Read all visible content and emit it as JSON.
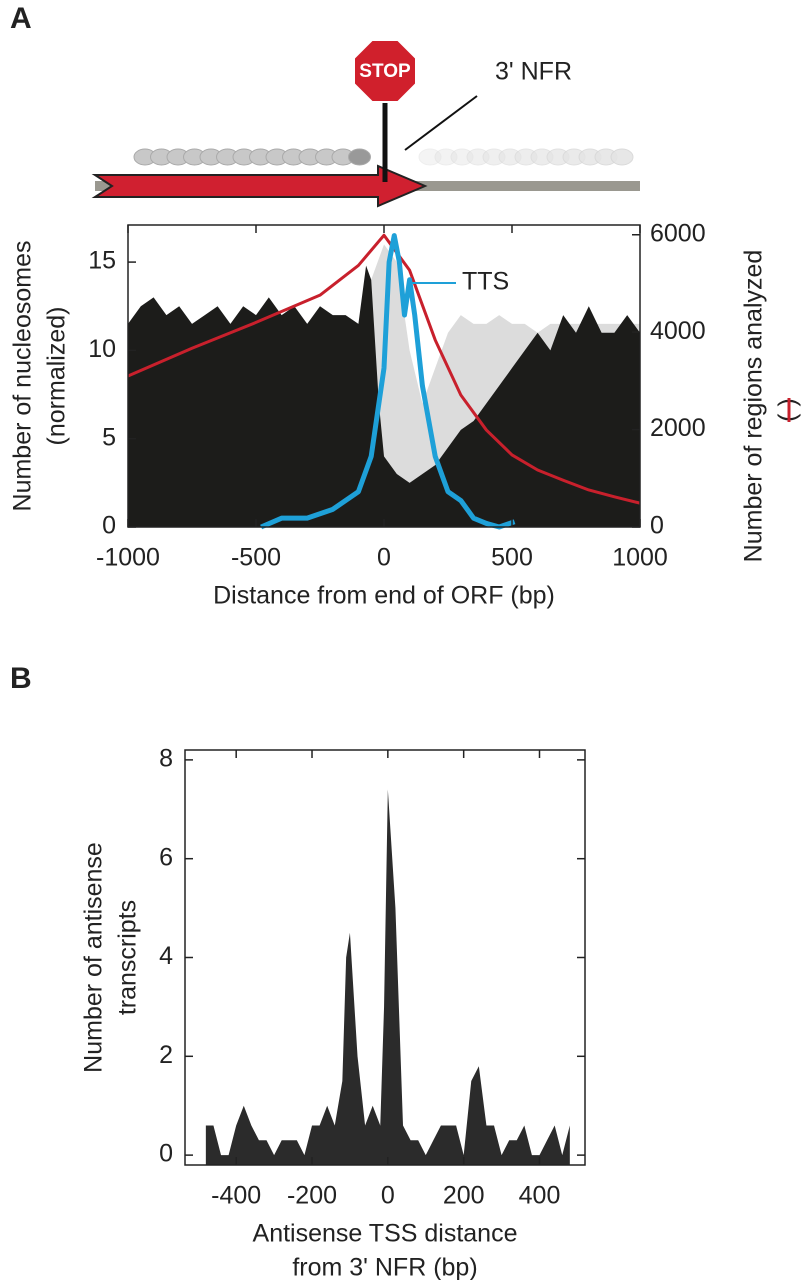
{
  "diagram": {
    "stop_label": "STOP",
    "nfr_label": "3' NFR"
  },
  "chart_data": [
    {
      "type": "area",
      "panel_label": "A",
      "xlabel": "Distance from end of ORF (bp)",
      "ylabel": [
        "Number of nucleosomes",
        "(normalized)"
      ],
      "y2label": [
        "Number of regions analyzed",
        "( )"
      ],
      "annotation": "TTS",
      "xlim": [
        -1000,
        1000
      ],
      "xticks": [
        -1000,
        -500,
        0,
        500,
        1000
      ],
      "ylim": [
        0,
        17.1
      ],
      "yticks": [
        0,
        5,
        10,
        15
      ],
      "y2lim": [
        0,
        6200
      ],
      "y2ticks": [
        0,
        2000,
        4000,
        6000
      ],
      "series": [
        {
          "type": "area",
          "color": "#dcdcdc",
          "x": [
            -1000,
            -900,
            -800,
            -700,
            -600,
            -500,
            -400,
            -300,
            -200,
            -100,
            -50,
            0,
            50,
            100,
            150,
            200,
            250,
            300,
            350,
            400,
            450,
            500,
            550,
            600,
            650,
            700,
            750,
            800,
            850,
            900,
            950,
            1000
          ],
          "values": [
            11,
            11,
            11,
            11,
            11,
            11,
            11,
            11,
            11,
            11,
            14,
            16,
            15,
            10,
            7,
            9,
            11,
            12,
            11.5,
            11.5,
            12,
            11.5,
            11.5,
            11,
            11.5,
            11.5,
            11.5,
            11.5,
            11.5,
            11.5,
            11.5,
            11.5
          ]
        },
        {
          "type": "area",
          "color": "#1c1c1a",
          "x": [
            -1000,
            -950,
            -900,
            -850,
            -800,
            -750,
            -700,
            -650,
            -600,
            -550,
            -500,
            -450,
            -400,
            -350,
            -300,
            -250,
            -200,
            -150,
            -100,
            -70,
            -50,
            -20,
            0,
            50,
            100,
            150,
            200,
            250,
            300,
            350,
            400,
            450,
            500,
            550,
            600,
            650,
            700,
            750,
            800,
            850,
            900,
            950,
            1000
          ],
          "values": [
            11.5,
            12.5,
            13,
            12,
            12.5,
            11.5,
            12,
            12.5,
            11.5,
            12.5,
            12,
            13,
            12,
            12.5,
            11.5,
            12.5,
            12,
            12,
            11.5,
            14.8,
            14,
            7,
            4,
            3,
            2.5,
            3,
            3.5,
            4.5,
            5.5,
            6,
            7,
            8,
            9,
            10,
            11,
            10,
            12,
            11,
            12.5,
            11,
            11,
            12,
            11
          ]
        },
        {
          "type": "line",
          "axis": "y2",
          "color": "#c8202c",
          "x": [
            -1000,
            -750,
            -500,
            -250,
            -100,
            0,
            100,
            200,
            300,
            400,
            500,
            600,
            700,
            800,
            900,
            1000
          ],
          "values": [
            3100,
            3670,
            4200,
            4760,
            5370,
            5990,
            5270,
            3840,
            2710,
            1990,
            1480,
            1170,
            960,
            760,
            620,
            490
          ]
        },
        {
          "type": "line",
          "color": "#1ea0d8",
          "width": 5,
          "x": [
            -480,
            -400,
            -300,
            -200,
            -100,
            -50,
            0,
            20,
            40,
            60,
            80,
            100,
            120,
            150,
            200,
            250,
            300,
            350,
            400,
            450,
            510
          ],
          "values": [
            0,
            0.5,
            0.5,
            1,
            2,
            4,
            9,
            15,
            16.5,
            15,
            12,
            14,
            12,
            8,
            4,
            2,
            1.5,
            0.5,
            0.2,
            0,
            0.3
          ]
        }
      ]
    },
    {
      "type": "area",
      "panel_label": "B",
      "xlabel": [
        "Antisense TSS distance",
        "from 3' NFR (bp)"
      ],
      "ylabel": [
        "Number of antisense",
        "transcripts"
      ],
      "xlim": [
        -535,
        520
      ],
      "xticks": [
        -400,
        -200,
        0,
        200,
        400
      ],
      "ylim": [
        -0.2,
        8.2
      ],
      "yticks": [
        0,
        2,
        4,
        6,
        8
      ],
      "series": [
        {
          "type": "area",
          "color": "#2b2b2b",
          "x": [
            -480,
            -460,
            -440,
            -420,
            -400,
            -380,
            -360,
            -340,
            -320,
            -300,
            -280,
            -260,
            -240,
            -220,
            -200,
            -180,
            -160,
            -140,
            -120,
            -110,
            -100,
            -80,
            -60,
            -40,
            -20,
            -10,
            0,
            20,
            40,
            60,
            80,
            100,
            120,
            140,
            160,
            180,
            200,
            220,
            240,
            260,
            280,
            300,
            320,
            340,
            360,
            380,
            400,
            420,
            440,
            460,
            480
          ],
          "values": [
            0.6,
            0.6,
            0,
            0,
            0.6,
            1,
            0.6,
            0.3,
            0.3,
            0,
            0.3,
            0.3,
            0.3,
            0,
            0.6,
            0.6,
            1,
            0.6,
            1.5,
            4,
            4.5,
            2,
            0.6,
            1,
            0.6,
            3,
            7.4,
            5,
            0.6,
            0.3,
            0.3,
            0,
            0.3,
            0.6,
            0.6,
            0.6,
            0,
            1.5,
            1.8,
            0.6,
            0.6,
            0,
            0.3,
            0.3,
            0.6,
            0,
            0,
            0.3,
            0.6,
            0,
            0.6
          ]
        }
      ]
    }
  ]
}
